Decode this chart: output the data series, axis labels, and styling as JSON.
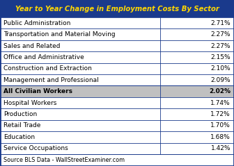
{
  "title": "Year to Year Change in Employment Costs By Sector",
  "title_bg": "#1a3a8c",
  "title_color": "#FFD700",
  "rows": [
    {
      "sector": "Public Administration",
      "value": "2.71%",
      "highlight": false
    },
    {
      "sector": "Transportation and Material Moving",
      "value": "2.27%",
      "highlight": false
    },
    {
      "sector": "Sales and Related",
      "value": "2.27%",
      "highlight": false
    },
    {
      "sector": "Office and Administrative",
      "value": "2.15%",
      "highlight": false
    },
    {
      "sector": "Construction and Extraction",
      "value": "2.10%",
      "highlight": false
    },
    {
      "sector": "Management and Professional",
      "value": "2.09%",
      "highlight": false
    },
    {
      "sector": "All Civilian Workers",
      "value": "2.02%",
      "highlight": true
    },
    {
      "sector": "Hospital Workers",
      "value": "1.74%",
      "highlight": false
    },
    {
      "sector": "Production",
      "value": "1.72%",
      "highlight": false
    },
    {
      "sector": "Retail Trade",
      "value": "1.70%",
      "highlight": false
    },
    {
      "sector": "Education",
      "value": "1.68%",
      "highlight": false
    },
    {
      "sector": "Service Occupations",
      "value": "1.42%",
      "highlight": false
    }
  ],
  "footer": "Source BLS Data - WallStreetExaminer.com",
  "row_bg_normal": "#FFFFFF",
  "row_bg_highlight": "#C0C0C0",
  "border_color": "#1a3a8c",
  "text_color_normal": "#000000",
  "footer_bg": "#FFFFFF",
  "col_split": 0.685,
  "title_fontsize": 7.2,
  "row_fontsize": 6.5,
  "footer_fontsize": 5.8
}
